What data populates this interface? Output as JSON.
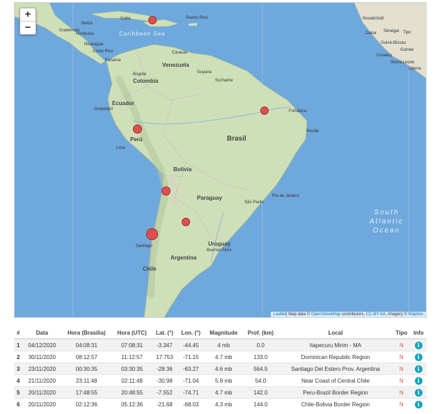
{
  "map": {
    "zoom_in": "+",
    "zoom_out": "−",
    "attribution": {
      "leaflet": "Leaflet",
      "text": "| Map data © ",
      "osm": "OpenStreetMap",
      "mid": " contributors, ",
      "license": "CC-BY-SA",
      "imagery": ", Imagery © ",
      "mapbox": "Mapbox"
    },
    "labels": {
      "caribbean_sea": "Caribbean Sea",
      "south_atlantic": "South",
      "south_atlantic2": "Atlantic",
      "south_atlantic3": "Ocean",
      "venezuela": "Venezuela",
      "colombia": "Colombia",
      "ecuador": "Ecuador",
      "peru": "Perú",
      "bolivia": "Bolivia",
      "brasil": "Brasil",
      "paraguay": "Paraguay",
      "argentina": "Argentina",
      "chile": "Chile",
      "uruguay": "Uruguay",
      "guyana": "Guyana",
      "suriname": "Suriname",
      "nicaragua": "Nicaragua",
      "honduras": "Honduras",
      "guatemala": "Guatemala",
      "belize": "Belize",
      "costa_rica": "Costa Rica",
      "panama": "Panamá",
      "cuba": "Cuba",
      "puerto_rico": "Puerto Rico",
      "caracas": "Caracas",
      "bogota": "Bogotá",
      "guayaquil": "Guayaquil",
      "lima": "Lima",
      "santiago": "Santiago",
      "buenos_aires": "Buenos Aires",
      "sao_paulo": "São Paulo",
      "rio": "Rio de Janeiro",
      "recife": "Recife",
      "fortaleza": "Fortaleza",
      "nouakchott": "Nouakchott",
      "dakar": "Dakar",
      "senegal": "Sénégal",
      "guinee": "Guinée",
      "conakry": "Conakry",
      "liberia": "Liberia",
      "sierra_leone": "Sierra Leone",
      "guinea_bissau": "Guiné-Bissau",
      "tipo_africa": "Tipo"
    }
  },
  "table": {
    "headers": [
      "#",
      "Data",
      "Hora (Brasília)",
      "Hora (UTC)",
      "Lat. (°)",
      "Lon. (°)",
      "Magnitude",
      "Prof. (km)",
      "Local",
      "Tipo",
      "Info"
    ],
    "rows": [
      {
        "n": "1",
        "data": "04/12/2020",
        "hb": "04:08:31",
        "hu": "07:08:31",
        "lat": "-3.347",
        "lon": "-44.45",
        "mag": "4 mb",
        "prof": "0.0",
        "local": "Itapecuru Mirim - MA",
        "tipo": "N"
      },
      {
        "n": "2",
        "data": "30/11/2020",
        "hb": "08:12:57",
        "hu": "11:12:57",
        "lat": "17.753",
        "lon": "-71.15",
        "mag": "4.7 mb",
        "prof": "133.0",
        "local": "Dominican Republic Region",
        "tipo": "N"
      },
      {
        "n": "3",
        "data": "23/11/2020",
        "hb": "00:30:35",
        "hu": "03:30:35",
        "lat": "-28.36",
        "lon": "-63.27",
        "mag": "4.6 mb",
        "prof": "564.5",
        "local": "Santiago Del Estero Prov. Argentina",
        "tipo": "N"
      },
      {
        "n": "4",
        "data": "21/11/2020",
        "hb": "23:11:48",
        "hu": "02:11:48",
        "lat": "-30.98",
        "lon": "-71.04",
        "mag": "5.8 mb",
        "prof": "54.0",
        "local": "Near Coast of Central Chile",
        "tipo": "N"
      },
      {
        "n": "5",
        "data": "20/11/2020",
        "hb": "17:48:55",
        "hu": "20:48:55",
        "lat": "-7.552",
        "lon": "-74.71",
        "mag": "4.7 mb",
        "prof": "142.0",
        "local": "Peru-Brazil Border Region",
        "tipo": "N"
      },
      {
        "n": "6",
        "data": "20/11/2020",
        "hb": "02:12:36",
        "hu": "05:12:36",
        "lat": "-21.68",
        "lon": "-68.03",
        "mag": "4.3 mb",
        "prof": "144.0",
        "local": "Chile-Bolivia Border Region",
        "tipo": "N"
      }
    ],
    "info_glyph": "i"
  },
  "colors": {
    "ocean": "#6fa8dc",
    "land": "#cfe0b8",
    "marker": "#e04f4f",
    "tipo": "#d9534f",
    "info": "#17a2b8"
  }
}
